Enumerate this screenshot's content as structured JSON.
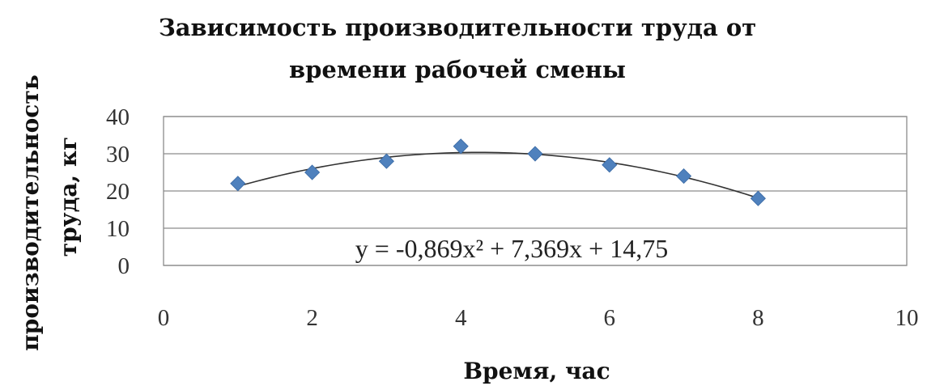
{
  "chart_data": {
    "type": "scatter",
    "title_lines": [
      "Зависимость производительности труда от",
      "времени рабочей смены"
    ],
    "xlabel": "Время, час",
    "ylabel_lines": [
      "производительность",
      "труда,  кг"
    ],
    "xlim": [
      0,
      10
    ],
    "ylim": [
      0,
      40
    ],
    "x_ticks": [
      "0",
      "2",
      "4",
      "6",
      "8",
      "10"
    ],
    "y_ticks": [
      "0",
      "10",
      "20",
      "30",
      "40"
    ],
    "grid": true,
    "series": [
      {
        "x": [
          1,
          2,
          3,
          4,
          5,
          6,
          7,
          8
        ],
        "y": [
          22,
          25,
          28,
          32,
          30,
          27,
          24,
          18
        ],
        "color": "#4f81bd",
        "marker": "diamond"
      }
    ],
    "trendline": {
      "type": "polynomial",
      "coefficients": [
        -0.869,
        7.369,
        14.75
      ],
      "x_range": [
        1,
        8
      ],
      "equation_label": "y = -0,869x² + 7,369x + 14,75"
    }
  }
}
